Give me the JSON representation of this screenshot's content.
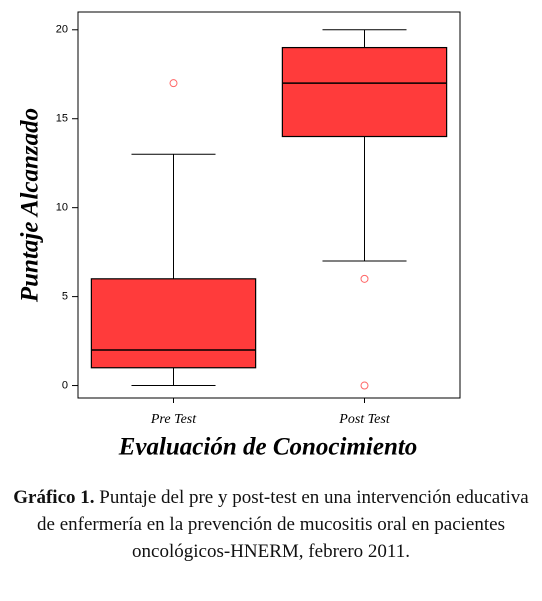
{
  "chart_data": {
    "type": "box",
    "y_label": "Puntaje Alcanzado",
    "x_label": "Evaluación de Conocimiento",
    "categories": [
      "Pre Test",
      "Post Test"
    ],
    "color": "#ff3b3b",
    "outlier_color": "#ff6666",
    "boxes": [
      {
        "whisker_low": 0,
        "q1": 1,
        "median": 2,
        "q3": 6,
        "whisker_high": 13,
        "outliers": [
          17
        ]
      },
      {
        "whisker_low": 7,
        "q1": 14,
        "median": 17,
        "q3": 19,
        "whisker_high": 20,
        "outliers": [
          6,
          0
        ]
      }
    ],
    "ylim": [
      -0.7,
      21
    ],
    "yticks": [
      0,
      5,
      10,
      15,
      20
    ]
  },
  "caption": {
    "label": "Gráfico 1.",
    "text": "Puntaje del pre y post-test en una intervención educativa de enfermería en la prevención de mucositis oral en pacientes oncológicos-HNERM, febrero 2011."
  }
}
